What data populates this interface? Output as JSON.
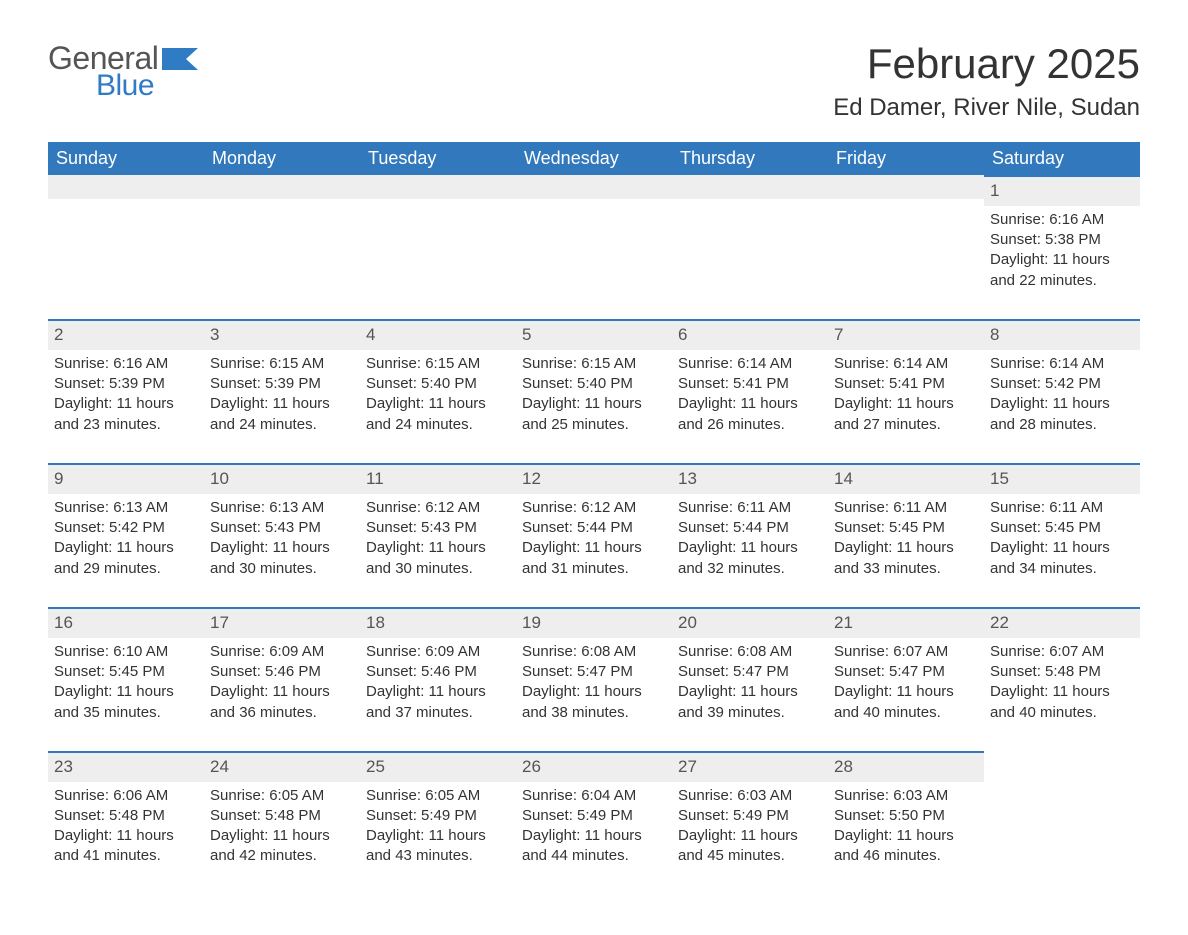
{
  "logo": {
    "text1": "General",
    "text2": "Blue"
  },
  "title": "February 2025",
  "subtitle": "Ed Damer, River Nile, Sudan",
  "colors": {
    "header_bg": "#3178bc",
    "header_text": "#ffffff",
    "daybar_bg": "#eeeeee",
    "daybar_border": "#3178bc",
    "body_text": "#333333",
    "logo_gray": "#555555",
    "logo_blue": "#2f7bc4",
    "page_bg": "#ffffff"
  },
  "dayNames": [
    "Sunday",
    "Monday",
    "Tuesday",
    "Wednesday",
    "Thursday",
    "Friday",
    "Saturday"
  ],
  "startDayIndex": 6,
  "daysInMonth": 28,
  "days": {
    "1": {
      "sunrise": "6:16 AM",
      "sunset": "5:38 PM",
      "daylight": "11 hours and 22 minutes."
    },
    "2": {
      "sunrise": "6:16 AM",
      "sunset": "5:39 PM",
      "daylight": "11 hours and 23 minutes."
    },
    "3": {
      "sunrise": "6:15 AM",
      "sunset": "5:39 PM",
      "daylight": "11 hours and 24 minutes."
    },
    "4": {
      "sunrise": "6:15 AM",
      "sunset": "5:40 PM",
      "daylight": "11 hours and 24 minutes."
    },
    "5": {
      "sunrise": "6:15 AM",
      "sunset": "5:40 PM",
      "daylight": "11 hours and 25 minutes."
    },
    "6": {
      "sunrise": "6:14 AM",
      "sunset": "5:41 PM",
      "daylight": "11 hours and 26 minutes."
    },
    "7": {
      "sunrise": "6:14 AM",
      "sunset": "5:41 PM",
      "daylight": "11 hours and 27 minutes."
    },
    "8": {
      "sunrise": "6:14 AM",
      "sunset": "5:42 PM",
      "daylight": "11 hours and 28 minutes."
    },
    "9": {
      "sunrise": "6:13 AM",
      "sunset": "5:42 PM",
      "daylight": "11 hours and 29 minutes."
    },
    "10": {
      "sunrise": "6:13 AM",
      "sunset": "5:43 PM",
      "daylight": "11 hours and 30 minutes."
    },
    "11": {
      "sunrise": "6:12 AM",
      "sunset": "5:43 PM",
      "daylight": "11 hours and 30 minutes."
    },
    "12": {
      "sunrise": "6:12 AM",
      "sunset": "5:44 PM",
      "daylight": "11 hours and 31 minutes."
    },
    "13": {
      "sunrise": "6:11 AM",
      "sunset": "5:44 PM",
      "daylight": "11 hours and 32 minutes."
    },
    "14": {
      "sunrise": "6:11 AM",
      "sunset": "5:45 PM",
      "daylight": "11 hours and 33 minutes."
    },
    "15": {
      "sunrise": "6:11 AM",
      "sunset": "5:45 PM",
      "daylight": "11 hours and 34 minutes."
    },
    "16": {
      "sunrise": "6:10 AM",
      "sunset": "5:45 PM",
      "daylight": "11 hours and 35 minutes."
    },
    "17": {
      "sunrise": "6:09 AM",
      "sunset": "5:46 PM",
      "daylight": "11 hours and 36 minutes."
    },
    "18": {
      "sunrise": "6:09 AM",
      "sunset": "5:46 PM",
      "daylight": "11 hours and 37 minutes."
    },
    "19": {
      "sunrise": "6:08 AM",
      "sunset": "5:47 PM",
      "daylight": "11 hours and 38 minutes."
    },
    "20": {
      "sunrise": "6:08 AM",
      "sunset": "5:47 PM",
      "daylight": "11 hours and 39 minutes."
    },
    "21": {
      "sunrise": "6:07 AM",
      "sunset": "5:47 PM",
      "daylight": "11 hours and 40 minutes."
    },
    "22": {
      "sunrise": "6:07 AM",
      "sunset": "5:48 PM",
      "daylight": "11 hours and 40 minutes."
    },
    "23": {
      "sunrise": "6:06 AM",
      "sunset": "5:48 PM",
      "daylight": "11 hours and 41 minutes."
    },
    "24": {
      "sunrise": "6:05 AM",
      "sunset": "5:48 PM",
      "daylight": "11 hours and 42 minutes."
    },
    "25": {
      "sunrise": "6:05 AM",
      "sunset": "5:49 PM",
      "daylight": "11 hours and 43 minutes."
    },
    "26": {
      "sunrise": "6:04 AM",
      "sunset": "5:49 PM",
      "daylight": "11 hours and 44 minutes."
    },
    "27": {
      "sunrise": "6:03 AM",
      "sunset": "5:49 PM",
      "daylight": "11 hours and 45 minutes."
    },
    "28": {
      "sunrise": "6:03 AM",
      "sunset": "5:50 PM",
      "daylight": "11 hours and 46 minutes."
    }
  },
  "labels": {
    "sunrise": "Sunrise: ",
    "sunset": "Sunset: ",
    "daylight": "Daylight: "
  }
}
